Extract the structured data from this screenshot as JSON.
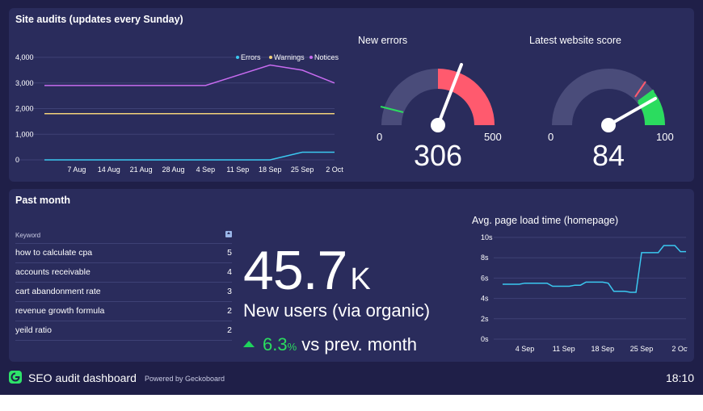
{
  "audits": {
    "title": "Site audits (updates every Sunday)",
    "legend": [
      "Errors",
      "Warnings",
      "Notices"
    ]
  },
  "new_errors": {
    "title": "New errors",
    "min": "0",
    "max": "500",
    "value": "306"
  },
  "website_score": {
    "title": "Latest website score",
    "min": "0",
    "max": "100",
    "value": "84"
  },
  "past_month": {
    "title": "Past month",
    "table": {
      "header": "Keyword",
      "rows": [
        {
          "keyword": "how to calculate cpa",
          "count": "5"
        },
        {
          "keyword": "accounts receivable",
          "count": "4"
        },
        {
          "keyword": "cart abandonment rate",
          "count": "3"
        },
        {
          "keyword": "revenue growth formula",
          "count": "2"
        },
        {
          "keyword": "yeild ratio",
          "count": "2"
        }
      ]
    },
    "users": {
      "value": "45.7",
      "suffix": "K",
      "label": "New users (via organic)"
    },
    "change": {
      "value": "6.3",
      "unit": "%",
      "text": "vs prev. month"
    },
    "load_time_title": "Avg. page load time (homepage)"
  },
  "footer": {
    "title": "SEO audit dashboard",
    "powered": "Powered by Geckoboard",
    "time": "18:10"
  },
  "colors": {
    "errors": "#3bc8f0",
    "warnings": "#f3d27a",
    "notices": "#c86bf0",
    "gauge_red": "#ff5a6e",
    "gauge_green": "#2bdc5f",
    "load_line": "#3bc8f0"
  },
  "chart_data": [
    {
      "type": "line",
      "x": [
        "31 Jul",
        "7 Aug",
        "14 Aug",
        "21 Aug",
        "28 Aug",
        "4 Sep",
        "11 Sep",
        "18 Sep",
        "25 Sep",
        "2 Oct"
      ],
      "xticks": [
        "7 Aug",
        "14 Aug",
        "21 Aug",
        "28 Aug",
        "4 Sep",
        "11 Sep",
        "18 Sep",
        "25 Sep",
        "2 Oct"
      ],
      "ylim": [
        0,
        4000
      ],
      "yticks": [
        "0",
        "1,000",
        "2,000",
        "3,000",
        "4,000"
      ],
      "grid": true,
      "legend": "top-right",
      "series": [
        {
          "name": "Errors",
          "values": [
            0,
            0,
            0,
            0,
            0,
            0,
            0,
            0,
            300,
            300
          ]
        },
        {
          "name": "Warnings",
          "values": [
            1800,
            1800,
            1800,
            1800,
            1800,
            1800,
            1800,
            1800,
            1800,
            1800
          ]
        },
        {
          "name": "Notices",
          "values": [
            2900,
            2900,
            2900,
            2900,
            2900,
            2900,
            3300,
            3700,
            3500,
            3000
          ]
        }
      ]
    },
    {
      "type": "line",
      "x": [
        "31 Aug",
        "1 Sep",
        "2 Sep",
        "3 Sep",
        "4 Sep",
        "5 Sep",
        "6 Sep",
        "7 Sep",
        "8 Sep",
        "9 Sep",
        "10 Sep",
        "11 Sep",
        "12 Sep",
        "13 Sep",
        "14 Sep",
        "15 Sep",
        "16 Sep",
        "17 Sep",
        "18 Sep",
        "19 Sep",
        "20 Sep",
        "21 Sep",
        "22 Sep",
        "23 Sep",
        "24 Sep",
        "25 Sep",
        "26 Sep",
        "27 Sep",
        "28 Sep",
        "29 Sep",
        "30 Sep",
        "1 Oct",
        "2 Oct",
        "3 Oct"
      ],
      "xticks": [
        "4 Sep",
        "11 Sep",
        "18 Sep",
        "25 Sep",
        "2 Oct"
      ],
      "ylim": [
        0,
        10
      ],
      "yticks": [
        "0s",
        "2s",
        "4s",
        "6s",
        "8s",
        "10s"
      ],
      "grid": true,
      "series": [
        {
          "values": [
            5.4,
            5.4,
            5.4,
            5.4,
            5.5,
            5.5,
            5.5,
            5.5,
            5.5,
            5.2,
            5.2,
            5.2,
            5.2,
            5.3,
            5.3,
            5.6,
            5.6,
            5.6,
            5.6,
            5.5,
            4.7,
            4.7,
            4.7,
            4.6,
            4.6,
            8.5,
            8.5,
            8.5,
            8.5,
            9.2,
            9.2,
            9.2,
            8.6,
            8.6
          ]
        }
      ]
    }
  ]
}
